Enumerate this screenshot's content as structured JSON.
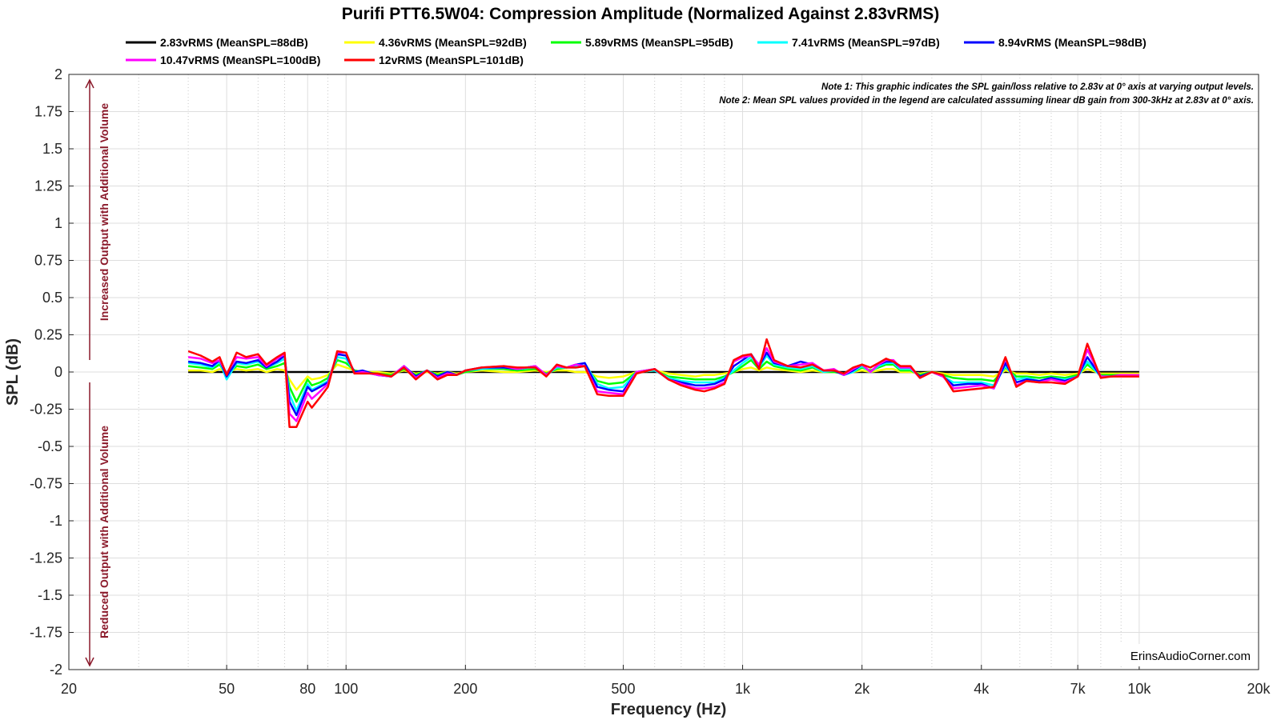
{
  "chart_data": {
    "type": "line",
    "title": "Purifi PTT6.5W04: Compression Amplitude (Normalized Against 2.83vRMS)",
    "xlabel": "Frequency (Hz)",
    "ylabel": "SPL (dB)",
    "xscale": "log",
    "xlim": [
      20,
      20000
    ],
    "ylim": [
      -2,
      2
    ],
    "grid": true,
    "legend_position": "top",
    "xticks": [
      20,
      50,
      80,
      100,
      200,
      500,
      1000,
      2000,
      4000,
      7000,
      10000,
      20000
    ],
    "xtick_labels": [
      "20",
      "50",
      "80",
      "100",
      "200",
      "500",
      "1k",
      "2k",
      "4k",
      "7k",
      "10k",
      "20k"
    ],
    "yticks": [
      2,
      1.75,
      1.5,
      1.25,
      1,
      0.75,
      0.5,
      0.25,
      0,
      -0.25,
      -0.5,
      -0.75,
      -1,
      -1.25,
      -1.5,
      -1.75,
      -2
    ],
    "ytick_labels": [
      "2",
      "1.75",
      "1.5",
      "1.25",
      "1",
      "0.75",
      "0.5",
      "0.25",
      "0",
      "-0.25",
      "-0.5",
      "-0.75",
      "-1",
      "-1.25",
      "-1.5",
      "-1.75",
      "-2"
    ],
    "annotations": {
      "note1": "Note 1: This graphic indicates the SPL gain/loss relative to 2.83v at 0° axis at varying output levels.",
      "note2": "Note 2: Mean SPL values provided in the legend are calculated asssuming linear dB gain from 300-3kHz at 2.83v at 0° axis.",
      "upper_side": "Increased Output with Additional Volume",
      "lower_side": "Reduced Output with Additional Volume",
      "watermark": "ErinsAudioCorner.com"
    },
    "x": [
      40,
      43,
      46,
      48,
      50,
      53,
      56,
      60,
      63,
      67,
      70,
      72,
      75,
      80,
      82,
      86,
      90,
      95,
      100,
      105,
      110,
      120,
      130,
      140,
      150,
      160,
      170,
      180,
      190,
      200,
      220,
      250,
      270,
      300,
      320,
      340,
      360,
      380,
      400,
      430,
      460,
      500,
      540,
      600,
      650,
      700,
      760,
      800,
      850,
      900,
      950,
      1000,
      1050,
      1100,
      1150,
      1200,
      1300,
      1400,
      1500,
      1600,
      1700,
      1800,
      1900,
      2000,
      2100,
      2200,
      2300,
      2400,
      2500,
      2650,
      2800,
      3000,
      3200,
      3400,
      3700,
      4000,
      4300,
      4600,
      4900,
      5200,
      5600,
      6000,
      6500,
      7000,
      7400,
      8000,
      8500,
      9000,
      10000
    ],
    "series": [
      {
        "name": "2.83vRMS (MeanSPL=88dB)",
        "color": "#000000",
        "values": [
          0,
          0,
          0,
          0,
          0,
          0,
          0,
          0,
          0,
          0,
          0,
          0,
          0,
          0,
          0,
          0,
          0,
          0,
          0,
          0,
          0,
          0,
          0,
          0,
          0,
          0,
          0,
          0,
          0,
          0,
          0,
          0,
          0,
          0,
          0,
          0,
          0,
          0,
          0,
          0,
          0,
          0,
          0,
          0,
          0,
          0,
          0,
          0,
          0,
          0,
          0,
          0,
          0,
          0,
          0,
          0,
          0,
          0,
          0,
          0,
          0,
          0,
          0,
          0,
          0,
          0,
          0,
          0,
          0,
          0,
          0,
          0,
          0,
          0,
          0,
          0,
          0,
          0,
          0,
          0,
          0,
          0,
          0,
          0,
          0,
          0,
          0,
          0,
          0
        ]
      },
      {
        "name": "4.36vRMS (MeanSPL=92dB)",
        "color": "#ffff00",
        "values": [
          0.01,
          0.01,
          0.0,
          0.02,
          0.0,
          0.02,
          0.01,
          0.02,
          0.0,
          0.02,
          0.01,
          -0.05,
          -0.12,
          -0.03,
          -0.05,
          -0.04,
          -0.02,
          0.05,
          0.03,
          0.01,
          0.0,
          0.0,
          -0.01,
          0.01,
          -0.01,
          0.0,
          -0.01,
          0.0,
          -0.01,
          0.0,
          0.01,
          0.0,
          0.0,
          0.01,
          0.0,
          0.01,
          0.01,
          0.0,
          0.0,
          -0.03,
          -0.04,
          -0.03,
          0.0,
          0.01,
          -0.01,
          -0.02,
          -0.03,
          -0.02,
          -0.02,
          -0.01,
          0.0,
          0.02,
          0.03,
          0.01,
          0.03,
          0.02,
          0.01,
          0.0,
          0.01,
          0.0,
          0.0,
          -0.01,
          0.0,
          0.01,
          0.0,
          0.01,
          0.02,
          0.02,
          0.0,
          0.0,
          -0.01,
          0.0,
          -0.01,
          -0.02,
          -0.02,
          -0.02,
          -0.03,
          0.01,
          -0.01,
          -0.01,
          -0.02,
          -0.01,
          -0.02,
          -0.01,
          0.02,
          -0.01,
          -0.01,
          -0.01,
          -0.01
        ]
      },
      {
        "name": "5.89vRMS (MeanSPL=95dB)",
        "color": "#00ff00",
        "values": [
          0.04,
          0.03,
          0.02,
          0.05,
          -0.02,
          0.04,
          0.03,
          0.05,
          0.02,
          0.04,
          0.06,
          -0.1,
          -0.2,
          -0.05,
          -0.09,
          -0.07,
          -0.04,
          0.08,
          0.06,
          0.01,
          0.0,
          -0.01,
          -0.02,
          0.02,
          -0.02,
          0.01,
          -0.02,
          0.0,
          -0.02,
          0.0,
          0.02,
          0.02,
          0.01,
          0.02,
          -0.01,
          0.02,
          0.03,
          0.03,
          0.04,
          -0.06,
          -0.08,
          -0.07,
          0.0,
          0.01,
          -0.03,
          -0.04,
          -0.05,
          -0.05,
          -0.05,
          -0.03,
          0.0,
          0.04,
          0.08,
          0.02,
          0.07,
          0.04,
          0.02,
          0.01,
          0.03,
          0.0,
          0.0,
          -0.01,
          0.0,
          0.03,
          0.01,
          0.03,
          0.05,
          0.05,
          0.01,
          0.01,
          -0.02,
          0.0,
          -0.02,
          -0.04,
          -0.05,
          -0.05,
          -0.06,
          0.03,
          -0.03,
          -0.03,
          -0.04,
          -0.03,
          -0.04,
          -0.02,
          0.05,
          -0.02,
          -0.02,
          -0.02,
          -0.02
        ]
      },
      {
        "name": "7.41vRMS (MeanSPL=97dB)",
        "color": "#00ffff",
        "values": [
          0.06,
          0.05,
          0.03,
          0.07,
          -0.05,
          0.06,
          0.05,
          0.07,
          0.03,
          0.06,
          0.09,
          -0.15,
          -0.26,
          -0.08,
          -0.12,
          -0.09,
          -0.06,
          0.1,
          0.09,
          0.0,
          0.0,
          -0.02,
          -0.03,
          0.03,
          -0.03,
          0.01,
          -0.03,
          0.0,
          -0.02,
          0.01,
          0.02,
          0.03,
          0.02,
          0.03,
          -0.02,
          0.03,
          0.03,
          0.04,
          0.06,
          -0.08,
          -0.11,
          -0.1,
          0.0,
          0.01,
          -0.04,
          -0.06,
          -0.07,
          -0.07,
          -0.07,
          -0.04,
          0.01,
          0.06,
          0.1,
          0.03,
          0.11,
          0.05,
          0.03,
          0.02,
          0.04,
          0.0,
          0.01,
          -0.02,
          0.0,
          0.04,
          0.0,
          0.04,
          0.06,
          0.06,
          0.02,
          0.02,
          -0.03,
          0.0,
          -0.03,
          -0.07,
          -0.07,
          -0.07,
          -0.09,
          0.04,
          -0.05,
          -0.04,
          -0.06,
          -0.04,
          -0.05,
          -0.03,
          0.07,
          -0.03,
          -0.03,
          -0.02,
          -0.02
        ]
      },
      {
        "name": "8.94vRMS (MeanSPL=98dB)",
        "color": "#0000ff",
        "values": [
          0.07,
          0.06,
          0.04,
          0.08,
          -0.03,
          0.07,
          0.06,
          0.08,
          0.03,
          0.07,
          0.11,
          -0.2,
          -0.29,
          -0.1,
          -0.13,
          -0.1,
          -0.07,
          0.12,
          0.11,
          0.0,
          0.01,
          -0.02,
          -0.03,
          0.04,
          -0.03,
          0.01,
          -0.03,
          0.0,
          -0.02,
          0.01,
          0.03,
          0.03,
          0.02,
          0.04,
          -0.02,
          0.04,
          0.03,
          0.05,
          0.06,
          -0.1,
          -0.12,
          -0.13,
          0.0,
          0.02,
          -0.05,
          -0.07,
          -0.09,
          -0.09,
          -0.08,
          -0.05,
          0.04,
          0.08,
          0.12,
          0.04,
          0.13,
          0.06,
          0.04,
          0.07,
          0.05,
          0.01,
          0.01,
          -0.02,
          0.01,
          0.05,
          0.0,
          0.05,
          0.07,
          0.07,
          0.03,
          0.03,
          -0.03,
          0.0,
          -0.03,
          -0.09,
          -0.08,
          -0.08,
          -0.11,
          0.06,
          -0.07,
          -0.05,
          -0.06,
          -0.04,
          -0.06,
          -0.03,
          0.1,
          -0.03,
          -0.03,
          -0.02,
          -0.02
        ]
      },
      {
        "name": "10.47vRMS (MeanSPL=100dB)",
        "color": "#ff00ff",
        "values": [
          0.1,
          0.09,
          0.06,
          0.08,
          -0.01,
          0.1,
          0.09,
          0.1,
          0.04,
          0.09,
          0.12,
          -0.28,
          -0.33,
          -0.14,
          -0.18,
          -0.13,
          -0.08,
          0.13,
          0.13,
          -0.01,
          0.0,
          -0.02,
          -0.03,
          0.04,
          -0.04,
          0.01,
          -0.04,
          -0.01,
          -0.02,
          0.01,
          0.03,
          0.04,
          0.02,
          0.04,
          -0.02,
          0.04,
          0.03,
          0.05,
          0.04,
          -0.13,
          -0.14,
          -0.15,
          0.0,
          0.02,
          -0.05,
          -0.08,
          -0.11,
          -0.11,
          -0.1,
          -0.07,
          0.07,
          0.1,
          0.11,
          0.05,
          0.16,
          0.07,
          0.04,
          0.05,
          0.06,
          0.01,
          0.02,
          -0.02,
          0.02,
          0.05,
          0.0,
          0.05,
          0.08,
          0.08,
          0.03,
          0.03,
          -0.04,
          0.0,
          -0.03,
          -0.11,
          -0.1,
          -0.09,
          -0.11,
          0.09,
          -0.09,
          -0.06,
          -0.07,
          -0.05,
          -0.07,
          -0.03,
          0.15,
          -0.03,
          -0.03,
          -0.02,
          -0.02
        ]
      },
      {
        "name": "12vRMS (MeanSPL=101dB)",
        "color": "#ff0000",
        "values": [
          0.14,
          0.11,
          0.07,
          0.1,
          -0.02,
          0.13,
          0.1,
          0.12,
          0.05,
          0.1,
          0.13,
          -0.37,
          -0.37,
          -0.2,
          -0.24,
          -0.17,
          -0.1,
          0.14,
          0.13,
          -0.01,
          -0.01,
          -0.01,
          -0.03,
          0.03,
          -0.05,
          0.01,
          -0.05,
          -0.02,
          -0.02,
          0.01,
          0.03,
          0.04,
          0.03,
          0.03,
          -0.03,
          0.05,
          0.03,
          0.03,
          0.04,
          -0.15,
          -0.16,
          -0.16,
          -0.01,
          0.02,
          -0.05,
          -0.09,
          -0.12,
          -0.13,
          -0.11,
          -0.08,
          0.08,
          0.11,
          0.12,
          0.02,
          0.22,
          0.08,
          0.04,
          0.03,
          0.05,
          0.01,
          0.01,
          -0.01,
          0.03,
          0.05,
          0.03,
          0.06,
          0.09,
          0.07,
          0.04,
          0.04,
          -0.04,
          0.0,
          -0.02,
          -0.13,
          -0.12,
          -0.11,
          -0.1,
          0.1,
          -0.1,
          -0.06,
          -0.07,
          -0.07,
          -0.08,
          -0.03,
          0.19,
          -0.04,
          -0.03,
          -0.03,
          -0.03
        ]
      }
    ]
  }
}
